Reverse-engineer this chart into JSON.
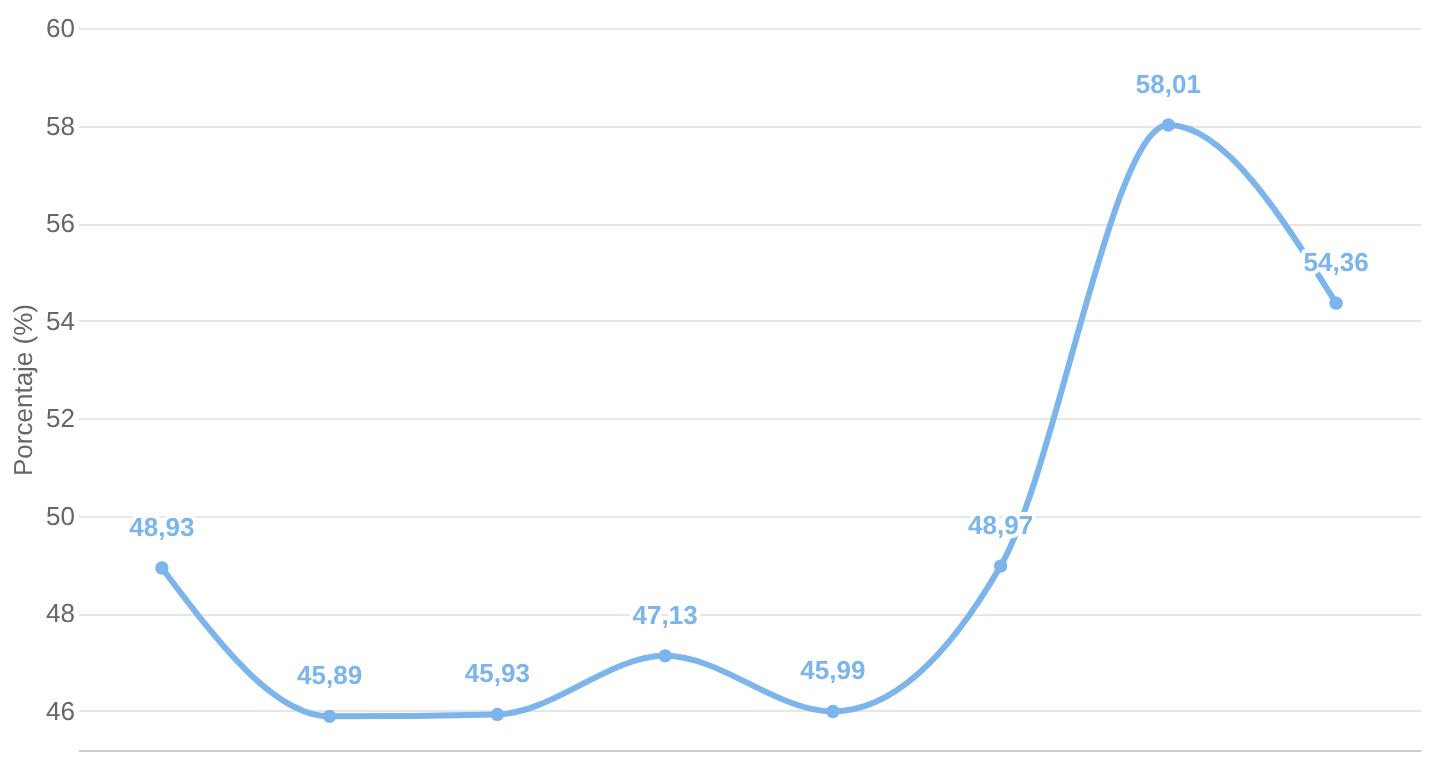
{
  "chart_data": {
    "type": "line",
    "ylabel": "Porcentaje (%)",
    "categories": [
      null,
      null,
      null,
      null,
      null,
      null,
      null,
      null
    ],
    "series": [
      {
        "color": "#7cb5ec",
        "values": [
          48.93,
          45.89,
          45.93,
          47.13,
          45.99,
          48.97,
          58.01,
          54.36
        ],
        "value_labels": [
          "48,93",
          "45,89",
          "45,93",
          "47,13",
          "45,99",
          "48,97",
          "58,01",
          "54,36"
        ]
      }
    ],
    "ylim": [
      45.2,
      60
    ],
    "yticks": [
      46,
      48,
      50,
      52,
      54,
      56,
      58,
      60
    ],
    "grid": "y",
    "tick_labels": "y",
    "marker": "circle",
    "line_style": "solid"
  }
}
